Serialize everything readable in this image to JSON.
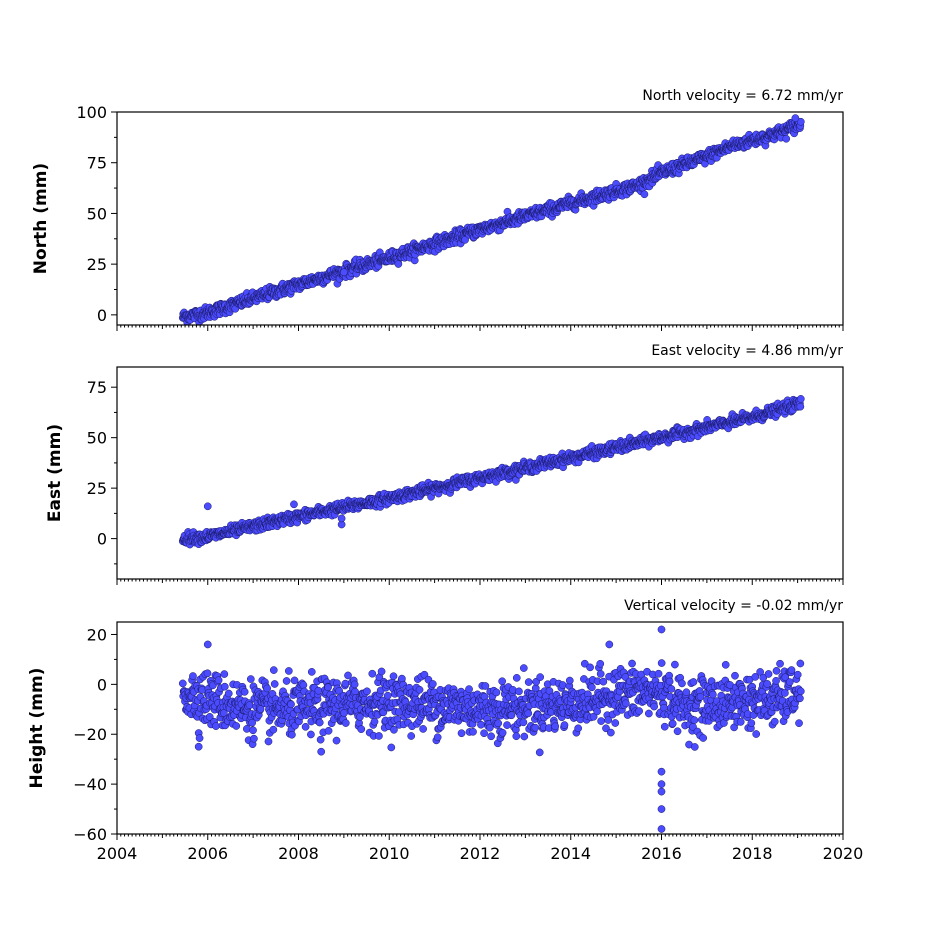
{
  "chart_data": [
    {
      "type": "scatter",
      "title": "North velocity = 6.72 mm/yr",
      "ylabel": "North (mm)",
      "xlim": [
        2004,
        2020
      ],
      "ylim": [
        -5,
        100
      ],
      "yticks": [
        0,
        25,
        50,
        75,
        100
      ],
      "series": [
        {
          "trend": [
            [
              2005.45,
              -1
            ],
            [
              2006.0,
              1
            ],
            [
              2008.0,
              15
            ],
            [
              2010.0,
              28
            ],
            [
              2012.0,
              42
            ],
            [
              2014.0,
              55
            ],
            [
              2015.5,
              64
            ],
            [
              2016.0,
              70
            ],
            [
              2016.5,
              74
            ],
            [
              2017.0,
              78
            ],
            [
              2017.5,
              83
            ],
            [
              2018.0,
              86
            ],
            [
              2018.5,
              89
            ],
            [
              2019.07,
              94
            ]
          ],
          "noise": 1.5
        }
      ],
      "outliers": [
        [
          2018.95,
          97
        ],
        [
          2009.0,
          21
        ]
      ],
      "color": "#4b4bff"
    },
    {
      "type": "scatter",
      "title": "East velocity = 4.86 mm/yr",
      "ylabel": "East (mm)",
      "xlim": [
        2004,
        2020
      ],
      "ylim": [
        -20,
        85
      ],
      "yticks": [
        0,
        25,
        50,
        75
      ],
      "series": [
        {
          "trend": [
            [
              2005.45,
              0
            ],
            [
              2006.0,
              1
            ],
            [
              2008.0,
              11
            ],
            [
              2010.0,
              20
            ],
            [
              2012.0,
              30
            ],
            [
              2014.0,
              40
            ],
            [
              2016.0,
              50
            ],
            [
              2017.0,
              55
            ],
            [
              2018.0,
              60
            ],
            [
              2019.07,
              67
            ]
          ],
          "noise": 1.3
        }
      ],
      "outliers": [
        [
          2006.0,
          16
        ],
        [
          2007.9,
          17
        ],
        [
          2008.95,
          7
        ],
        [
          2008.95,
          10
        ]
      ],
      "color": "#4b4bff"
    },
    {
      "type": "scatter",
      "title": "Vertical velocity = -0.02 mm/yr",
      "ylabel": "Height (mm)",
      "xlim": [
        2004,
        2020
      ],
      "ylim": [
        -60,
        25
      ],
      "yticks": [
        -60,
        -40,
        -20,
        0,
        20
      ],
      "xticks": [
        2004,
        2006,
        2008,
        2010,
        2012,
        2014,
        2016,
        2018,
        2020
      ],
      "series": [
        {
          "trend": [
            [
              2005.45,
              -3
            ],
            [
              2006.0,
              -6
            ],
            [
              2007.0,
              -10
            ],
            [
              2008.0,
              -10
            ],
            [
              2009.0,
              -8
            ],
            [
              2010.0,
              -7
            ],
            [
              2011.0,
              -8
            ],
            [
              2012.0,
              -10
            ],
            [
              2013.0,
              -9
            ],
            [
              2014.0,
              -8
            ],
            [
              2015.0,
              -4
            ],
            [
              2016.0,
              -3
            ],
            [
              2016.5,
              -9
            ],
            [
              2017.5,
              -7
            ],
            [
              2018.5,
              -6
            ],
            [
              2019.07,
              -3
            ]
          ],
          "noise": 5.5
        }
      ],
      "outliers": [
        [
          2016.0,
          22
        ],
        [
          2014.85,
          16
        ],
        [
          2006.0,
          16
        ],
        [
          2016.0,
          -40
        ],
        [
          2016.0,
          -43
        ],
        [
          2016.0,
          -50
        ],
        [
          2016.0,
          -58
        ],
        [
          2016.0,
          -35
        ],
        [
          2005.8,
          -25
        ],
        [
          2008.5,
          -27
        ]
      ],
      "color": "#4b4bff"
    }
  ]
}
